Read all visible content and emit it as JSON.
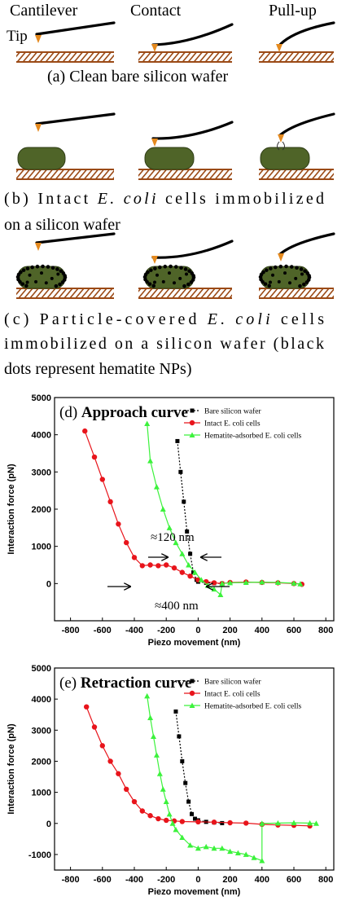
{
  "schematic": {
    "columns": [
      "Cantilever",
      "Contact",
      "Pull-up"
    ],
    "tip_label": "Tip",
    "captions": [
      {
        "lines": [
          [
            "(a) Clean bare silicon wafer"
          ]
        ]
      },
      {
        "lines": [
          [
            "(b) Intact ",
            "E. coli",
            " cells immobilized"
          ],
          [
            "on a silicon wafer"
          ]
        ]
      },
      {
        "lines": [
          [
            "(c) Particle-covered ",
            "E. coli",
            " cells"
          ],
          [
            "immobilized on a silicon wafer (black"
          ],
          [
            "dots represent hematite NPs)"
          ]
        ]
      }
    ]
  },
  "chart_data": [
    {
      "type": "line",
      "panel_label": "(d) ",
      "title": "Approach curve",
      "xlabel": "Piezo movement (nm)",
      "ylabel": "Interaction force (pN)",
      "xlim": [
        -900,
        850
      ],
      "ylim": [
        -1000,
        5000
      ],
      "xticks": [
        -800,
        -600,
        -400,
        -200,
        0,
        200,
        400,
        600,
        800
      ],
      "yticks": [
        0,
        1000,
        2000,
        3000,
        4000,
        5000
      ],
      "series": [
        {
          "name": "Bare silicon wafer",
          "color": "#000000",
          "marker": "square",
          "dashed": true,
          "x": [
            -130,
            -110,
            -90,
            -70,
            -50,
            -30,
            -10,
            0,
            50,
            100,
            150
          ],
          "values": [
            3830,
            3000,
            2200,
            1400,
            800,
            300,
            100,
            50,
            20,
            10,
            0
          ]
        },
        {
          "name": "Intact E. coli cells",
          "color": "#e8141b",
          "marker": "circle",
          "dashed": false,
          "x": [
            -710,
            -650,
            -600,
            -550,
            -500,
            -450,
            -400,
            -350,
            -300,
            -250,
            -200,
            -150,
            -100,
            -50,
            0,
            50,
            100,
            150,
            200,
            300,
            400,
            500,
            600,
            650
          ],
          "values": [
            4100,
            3400,
            2800,
            2200,
            1600,
            1100,
            700,
            480,
            500,
            480,
            500,
            420,
            300,
            200,
            100,
            50,
            20,
            0,
            30,
            40,
            30,
            20,
            0,
            -20
          ]
        },
        {
          "name": "Hematite-adsorbed E. coli cells",
          "color": "#3cf23c",
          "marker": "triangle",
          "dashed": false,
          "x": [
            -320,
            -300,
            -260,
            -220,
            -180,
            -140,
            -100,
            -60,
            -20,
            20,
            60,
            100,
            140,
            150,
            200,
            300,
            400,
            500,
            600,
            640
          ],
          "values": [
            4300,
            3300,
            2600,
            2000,
            1500,
            1100,
            800,
            500,
            300,
            100,
            -50,
            -150,
            -300,
            0,
            20,
            30,
            40,
            30,
            10,
            -10
          ]
        }
      ],
      "annotations": [
        "≈120 nm",
        "≈400 nm"
      ]
    },
    {
      "type": "line",
      "panel_label": "(e) ",
      "title": "Retraction curve",
      "xlabel": "Piezo movement (nm)",
      "ylabel": "Interaction force (pN)",
      "xlim": [
        -900,
        850
      ],
      "ylim": [
        -1500,
        5000
      ],
      "xticks": [
        -800,
        -600,
        -400,
        -200,
        0,
        200,
        400,
        600,
        800
      ],
      "yticks": [
        -1000,
        0,
        1000,
        2000,
        3000,
        4000,
        5000
      ],
      "series": [
        {
          "name": "Bare silicon wafer",
          "color": "#000000",
          "marker": "square",
          "dashed": true,
          "x": [
            -140,
            -120,
            -100,
            -80,
            -60,
            -40,
            -20,
            0,
            50,
            100,
            150
          ],
          "values": [
            3600,
            2800,
            2000,
            1300,
            700,
            300,
            150,
            100,
            50,
            30,
            10
          ]
        },
        {
          "name": "Intact E. coli cells",
          "color": "#e8141b",
          "marker": "circle",
          "dashed": false,
          "x": [
            -700,
            -650,
            -600,
            -550,
            -500,
            -450,
            -400,
            -350,
            -300,
            -250,
            -200,
            -150,
            -100,
            0,
            100,
            200,
            300,
            400,
            500,
            600,
            700
          ],
          "values": [
            3750,
            3100,
            2500,
            2000,
            1600,
            1100,
            700,
            400,
            250,
            150,
            100,
            80,
            60,
            50,
            40,
            20,
            10,
            -30,
            -50,
            -60,
            -80
          ]
        },
        {
          "name": "Hematite-adsorbed E. coli cells",
          "color": "#3cf23c",
          "marker": "triangle",
          "dashed": false,
          "x": [
            -320,
            -300,
            -280,
            -260,
            -240,
            -220,
            -200,
            -180,
            -160,
            -140,
            -100,
            -50,
            0,
            50,
            100,
            150,
            200,
            250,
            300,
            350,
            400,
            400,
            500,
            600,
            700,
            740
          ],
          "values": [
            4100,
            3400,
            2800,
            2200,
            1600,
            1100,
            700,
            300,
            0,
            -200,
            -450,
            -700,
            -800,
            -750,
            -800,
            -800,
            -900,
            -950,
            -1000,
            -1100,
            -1200,
            0,
            10,
            20,
            10,
            0
          ]
        }
      ]
    }
  ]
}
